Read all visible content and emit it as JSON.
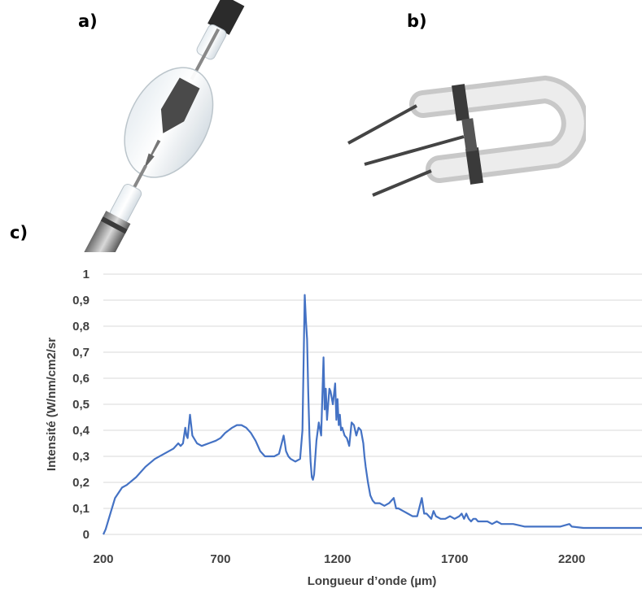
{
  "panels": {
    "a": "a)",
    "b": "b)",
    "c": "c)"
  },
  "images": {
    "a": "long-arc-xenon-lamp",
    "b": "u-shaped-flash-lamp"
  },
  "chart_data": {
    "type": "line",
    "title": "",
    "xlabel": "Longueur d’onde (µm)",
    "ylabel": "Intensité (W/nm/cm2/sr",
    "xlim": [
      200,
      2500
    ],
    "ylim": [
      0,
      1
    ],
    "xticks": [
      200,
      700,
      1200,
      1700,
      2200
    ],
    "xtick_labels": [
      "200",
      "700",
      "1200",
      "1700",
      "2200"
    ],
    "yticks": [
      0,
      0.1,
      0.2,
      0.3,
      0.4,
      0.5,
      0.6,
      0.7,
      0.8,
      0.9,
      1
    ],
    "ytick_labels": [
      "0",
      "0,1",
      "0,2",
      "0,3",
      "0,4",
      "0,5",
      "0,6",
      "0,7",
      "0,8",
      "0,9",
      "1"
    ],
    "grid": "horizontal",
    "color": "#4472c4",
    "series": [
      {
        "x": [
          200,
          210,
          230,
          250,
          280,
          300,
          340,
          380,
          420,
          460,
          500,
          520,
          530,
          540,
          550,
          555,
          560,
          570,
          580,
          600,
          620,
          650,
          680,
          700,
          720,
          750,
          770,
          790,
          810,
          830,
          850,
          870,
          890,
          910,
          930,
          950,
          970,
          975,
          980,
          990,
          1000,
          1020,
          1040,
          1050,
          1055,
          1060,
          1065,
          1070,
          1075,
          1080,
          1085,
          1090,
          1095,
          1100,
          1110,
          1120,
          1130,
          1140,
          1145,
          1150,
          1155,
          1160,
          1165,
          1170,
          1180,
          1190,
          1195,
          1200,
          1205,
          1210,
          1215,
          1220,
          1230,
          1240,
          1250,
          1260,
          1270,
          1280,
          1290,
          1300,
          1310,
          1315,
          1320,
          1330,
          1340,
          1350,
          1360,
          1380,
          1400,
          1420,
          1440,
          1450,
          1460,
          1480,
          1500,
          1520,
          1540,
          1560,
          1570,
          1580,
          1600,
          1610,
          1620,
          1640,
          1660,
          1680,
          1700,
          1720,
          1730,
          1740,
          1750,
          1760,
          1770,
          1780,
          1790,
          1800,
          1820,
          1840,
          1860,
          1880,
          1900,
          1950,
          2000,
          2050,
          2100,
          2150,
          2170,
          2190,
          2200,
          2250,
          2300,
          2350,
          2400,
          2450,
          2500
        ],
        "y": [
          0.0,
          0.02,
          0.08,
          0.14,
          0.18,
          0.19,
          0.22,
          0.26,
          0.29,
          0.31,
          0.33,
          0.35,
          0.34,
          0.35,
          0.41,
          0.38,
          0.37,
          0.46,
          0.38,
          0.35,
          0.34,
          0.35,
          0.36,
          0.37,
          0.39,
          0.41,
          0.42,
          0.42,
          0.41,
          0.39,
          0.36,
          0.32,
          0.3,
          0.3,
          0.3,
          0.31,
          0.38,
          0.35,
          0.32,
          0.3,
          0.29,
          0.28,
          0.29,
          0.4,
          0.66,
          0.92,
          0.82,
          0.75,
          0.55,
          0.38,
          0.28,
          0.22,
          0.21,
          0.23,
          0.36,
          0.43,
          0.38,
          0.68,
          0.48,
          0.56,
          0.44,
          0.5,
          0.56,
          0.55,
          0.5,
          0.58,
          0.44,
          0.52,
          0.42,
          0.46,
          0.4,
          0.41,
          0.38,
          0.37,
          0.34,
          0.43,
          0.42,
          0.38,
          0.41,
          0.4,
          0.35,
          0.3,
          0.26,
          0.2,
          0.15,
          0.13,
          0.12,
          0.12,
          0.11,
          0.12,
          0.14,
          0.1,
          0.1,
          0.09,
          0.08,
          0.07,
          0.07,
          0.14,
          0.08,
          0.08,
          0.06,
          0.09,
          0.07,
          0.06,
          0.06,
          0.07,
          0.06,
          0.07,
          0.08,
          0.06,
          0.08,
          0.06,
          0.05,
          0.06,
          0.06,
          0.05,
          0.05,
          0.05,
          0.04,
          0.05,
          0.04,
          0.04,
          0.03,
          0.03,
          0.03,
          0.03,
          0.035,
          0.04,
          0.03,
          0.025,
          0.025,
          0.025,
          0.025,
          0.025,
          0.025
        ]
      }
    ]
  }
}
